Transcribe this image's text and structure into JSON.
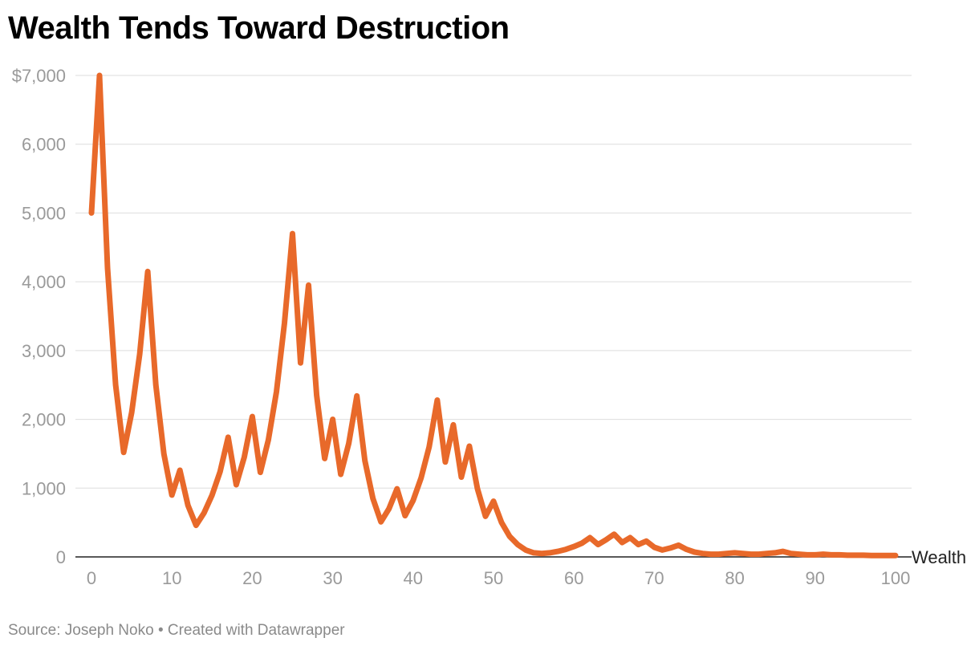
{
  "chart_data": {
    "type": "line",
    "title": "Wealth Tends Toward Destruction",
    "xlabel": "",
    "ylabel": "",
    "series_label": "Wealth",
    "xlim": [
      0,
      100
    ],
    "ylim": [
      0,
      7000
    ],
    "x_ticks": [
      0,
      10,
      20,
      30,
      40,
      50,
      60,
      70,
      80,
      90,
      100
    ],
    "x_tick_labels": [
      "0",
      "10",
      "20",
      "30",
      "40",
      "50",
      "60",
      "70",
      "80",
      "90",
      "100"
    ],
    "y_ticks": [
      0,
      1000,
      2000,
      3000,
      4000,
      5000,
      6000,
      7000
    ],
    "y_tick_labels": [
      "0",
      "1,000",
      "2,000",
      "3,000",
      "4,000",
      "5,000",
      "6,000",
      "$7,000"
    ],
    "grid": true,
    "series": [
      {
        "name": "Wealth",
        "color": "#e8692a",
        "x": [
          0,
          1,
          2,
          3,
          4,
          5,
          6,
          7,
          8,
          9,
          10,
          11,
          12,
          13,
          14,
          15,
          16,
          17,
          18,
          19,
          20,
          21,
          22,
          23,
          24,
          25,
          26,
          27,
          28,
          29,
          30,
          31,
          32,
          33,
          34,
          35,
          36,
          37,
          38,
          39,
          40,
          41,
          42,
          43,
          44,
          45,
          46,
          47,
          48,
          49,
          50,
          51,
          52,
          53,
          54,
          55,
          56,
          57,
          58,
          59,
          60,
          61,
          62,
          63,
          64,
          65,
          66,
          67,
          68,
          69,
          70,
          71,
          72,
          73,
          74,
          75,
          76,
          77,
          78,
          79,
          80,
          81,
          82,
          83,
          84,
          85,
          86,
          87,
          88,
          89,
          90,
          91,
          92,
          93,
          94,
          95,
          96,
          97,
          98,
          99,
          100
        ],
        "values": [
          5000,
          7000,
          4200,
          2500,
          1520,
          2100,
          2950,
          4150,
          2500,
          1500,
          900,
          1260,
          750,
          460,
          640,
          900,
          1240,
          1740,
          1050,
          1450,
          2040,
          1230,
          1700,
          2400,
          3400,
          4700,
          2820,
          3950,
          2350,
          1430,
          2000,
          1200,
          1650,
          2340,
          1400,
          850,
          510,
          700,
          990,
          600,
          820,
          1150,
          1600,
          2280,
          1380,
          1920,
          1160,
          1610,
          990,
          590,
          810,
          500,
          300,
          180,
          100,
          60,
          50,
          60,
          80,
          110,
          150,
          200,
          280,
          180,
          250,
          330,
          210,
          280,
          180,
          230,
          140,
          100,
          130,
          170,
          110,
          70,
          50,
          40,
          40,
          50,
          60,
          50,
          40,
          40,
          50,
          60,
          80,
          50,
          40,
          30,
          30,
          40,
          30,
          30,
          25,
          25,
          25,
          20,
          20,
          20,
          20
        ]
      }
    ],
    "source": "Source: Joseph Noko • Created with Datawrapper"
  }
}
